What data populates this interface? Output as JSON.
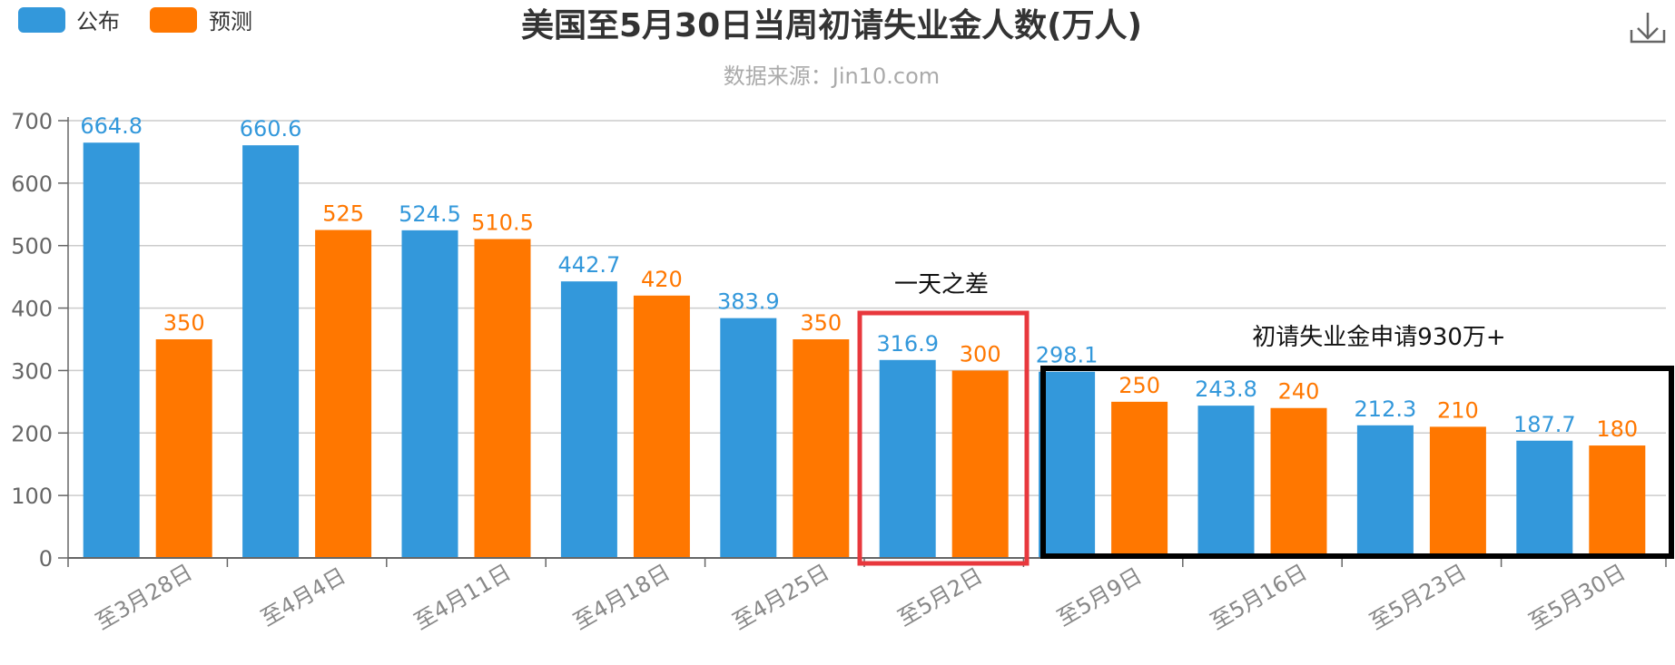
{
  "chart_data": {
    "type": "bar",
    "title": "美国至5月30日当周初请失业金人数(万人)",
    "subtitle": "数据来源：Jin10.com",
    "categories": [
      "至3月28日",
      "至4月4日",
      "至4月11日",
      "至4月18日",
      "至4月25日",
      "至5月2日",
      "至5月9日",
      "至5月16日",
      "至5月23日",
      "至5月30日"
    ],
    "series": [
      {
        "name": "公布",
        "color": "#3398DB",
        "values": [
          664.8,
          660.6,
          524.5,
          442.7,
          383.9,
          316.9,
          298.1,
          243.8,
          212.3,
          187.7
        ],
        "labels": [
          "664.8",
          "660.6",
          "524.5",
          "442.7",
          "383.9",
          "316.9",
          "298.1",
          "243.8",
          "212.3",
          "187.7"
        ]
      },
      {
        "name": "预测",
        "color": "#FF7700",
        "values": [
          350,
          525,
          510.5,
          420,
          350,
          300,
          250,
          240,
          210,
          180
        ],
        "labels": [
          "350",
          "525",
          "510.5",
          "420",
          "350",
          "300",
          "250",
          "240",
          "210",
          "180"
        ]
      }
    ],
    "ylim": [
      0,
      700
    ],
    "yticks": [
      "0",
      "100",
      "200",
      "300",
      "400",
      "500",
      "600",
      "700"
    ],
    "grid": true,
    "legend_position": "top-left",
    "annotations": [
      {
        "text": "一天之差",
        "box_color": "#E8383D",
        "highlights": [
          "至5月2日"
        ]
      },
      {
        "text": "初请失业金申请930万+",
        "box_color": "#000000",
        "highlights": [
          "至5月9日",
          "至5月16日",
          "至5月23日",
          "至5月30日"
        ]
      }
    ]
  },
  "toolbar": {
    "download_icon": "download-icon"
  }
}
